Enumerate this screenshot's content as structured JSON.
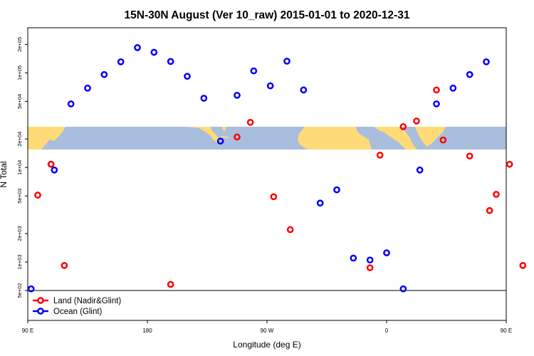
{
  "chart_data": {
    "type": "scatter",
    "title": "15N-30N August (Ver 10_raw)   2015-01-01 to 2020-12-31",
    "xlabel": "Longitude (deg E)",
    "ylabel": "N Total",
    "y_scale": "log",
    "xlim": [
      90,
      450
    ],
    "ylim": [
      500,
      300000
    ],
    "x_ticks": [
      {
        "value": 90,
        "label": "90 E"
      },
      {
        "value": 180,
        "label": "180"
      },
      {
        "value": 270,
        "label": "90 W"
      },
      {
        "value": 360,
        "label": "0"
      },
      {
        "value": 450,
        "label": "90 E"
      },
      {
        "value": 540,
        "label": "180"
      }
    ],
    "y_ticks": [
      {
        "value": 500,
        "label": "5e+02"
      },
      {
        "value": 1000,
        "label": "1e+03"
      },
      {
        "value": 2000,
        "label": "2e+03"
      },
      {
        "value": 5000,
        "label": "5e+03"
      },
      {
        "value": 10000,
        "label": "1e+04"
      },
      {
        "value": 20000,
        "label": "2e+04"
      },
      {
        "value": 50000,
        "label": "5e+04"
      },
      {
        "value": 100000,
        "label": "1e+05"
      },
      {
        "value": 200000,
        "label": "2e+05"
      }
    ],
    "legend_position": "bottom-left",
    "series": [
      {
        "name": "Land (Nadir&Glint)",
        "color": "#ff0000",
        "points": [
          {
            "x": 97.5,
            "y": 5100
          },
          {
            "x": 107.5,
            "y": 10800
          },
          {
            "x": 117.5,
            "y": 920
          },
          {
            "x": 107.5,
            "y": 10800
          },
          {
            "x": 197.5,
            "y": 580
          },
          {
            "x": 247.5,
            "y": 21000
          },
          {
            "x": 257.5,
            "y": 30000
          },
          {
            "x": 275,
            "y": 4900
          },
          {
            "x": 287.5,
            "y": 2200
          },
          {
            "x": 347.5,
            "y": 870
          },
          {
            "x": 355,
            "y": 13500
          },
          {
            "x": 372.5,
            "y": 27000
          },
          {
            "x": 382.5,
            "y": 31000
          },
          {
            "x": 397.5,
            "y": 66000
          },
          {
            "x": 402.5,
            "y": 19500
          },
          {
            "x": 422.5,
            "y": 13200
          },
          {
            "x": 437.5,
            "y": 3500
          },
          {
            "x": 442.5,
            "y": 5200
          },
          {
            "x": 452.5,
            "y": 10800
          },
          {
            "x": 462.5,
            "y": 920
          }
        ]
      },
      {
        "name": "Ocean (Glint)",
        "color": "#0000ff",
        "points": [
          {
            "x": 92.5,
            "y": 520
          },
          {
            "x": 110,
            "y": 9400
          },
          {
            "x": 122.5,
            "y": 47000
          },
          {
            "x": 135,
            "y": 69000
          },
          {
            "x": 147.5,
            "y": 96000
          },
          {
            "x": 160,
            "y": 131000
          },
          {
            "x": 172.5,
            "y": 185000
          },
          {
            "x": 185,
            "y": 165000
          },
          {
            "x": 197.5,
            "y": 132000
          },
          {
            "x": 210,
            "y": 92000
          },
          {
            "x": 222.5,
            "y": 54000
          },
          {
            "x": 235,
            "y": 19000
          },
          {
            "x": 247.5,
            "y": 58000
          },
          {
            "x": 260,
            "y": 105000
          },
          {
            "x": 272.5,
            "y": 73000
          },
          {
            "x": 285,
            "y": 133000
          },
          {
            "x": 297.5,
            "y": 66000
          },
          {
            "x": 310,
            "y": 4200
          },
          {
            "x": 322.5,
            "y": 5800
          },
          {
            "x": 335,
            "y": 1100
          },
          {
            "x": 347.5,
            "y": 1050
          },
          {
            "x": 360,
            "y": 1250
          },
          {
            "x": 372.5,
            "y": 520
          },
          {
            "x": 385,
            "y": 9400
          },
          {
            "x": 397.5,
            "y": 47000
          },
          {
            "x": 410,
            "y": 69000
          },
          {
            "x": 422.5,
            "y": 96000
          },
          {
            "x": 435,
            "y": 131000
          }
        ]
      }
    ]
  }
}
